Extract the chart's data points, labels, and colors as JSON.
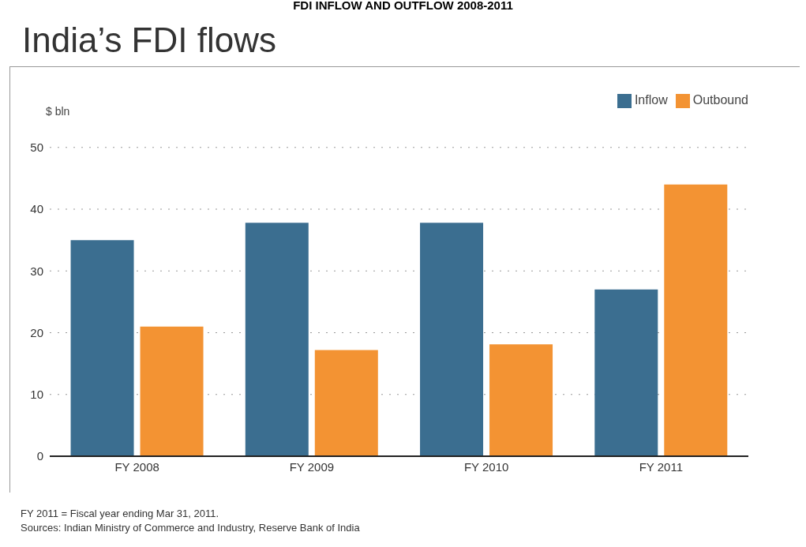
{
  "chart_data": {
    "type": "bar",
    "title": "India’s FDI flows",
    "ylabel": "$ bln",
    "categories": [
      "FY 2008",
      "FY 2009",
      "FY 2010",
      "FY 2011"
    ],
    "series": [
      {
        "name": "Inflow",
        "color": "#3b6e90",
        "values": [
          35,
          37.8,
          37.8,
          27
        ]
      },
      {
        "name": "Outbound",
        "color": "#f39333",
        "values": [
          21,
          17.2,
          18.1,
          44
        ]
      }
    ],
    "ylim": [
      0,
      50
    ],
    "yticks": [
      0,
      10,
      20,
      30,
      40,
      50
    ],
    "grid": "y",
    "legend": "top right",
    "annotations": [
      "FDI INFLOW AND OUTFLOW 2008-2011",
      "FY 2011 = Fiscal year ending Mar 31, 2011.",
      "Sources: Indian Ministry of Commerce and Industry, Reserve Bank of India"
    ]
  }
}
